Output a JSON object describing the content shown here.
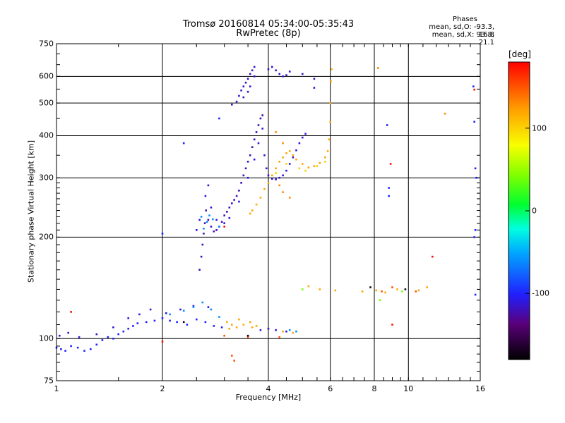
{
  "header": {
    "title_line1": "Tromsø 20160814 05:34:00-05:35:43",
    "title_line2": "RwPretec (8p)",
    "phases_title": "Phases",
    "phases_o": "mean, sd,O: -93.3, 16.8",
    "phases_x": "mean, sd,X:  93.8, 21.1"
  },
  "chart_data": {
    "type": "scatter",
    "xlabel": "Frequency [MHz]",
    "ylabel": "Stationary phase Virtual Height [km]",
    "xscale": "log",
    "yscale": "log",
    "xlim": [
      1,
      16
    ],
    "ylim": [
      75,
      750
    ],
    "x_ticks": [
      1,
      2,
      4,
      6,
      8,
      10,
      16
    ],
    "x_tick_labels": [
      "1",
      "2",
      "4",
      "6",
      "8",
      "10",
      "16"
    ],
    "y_ticks": [
      75,
      100,
      200,
      300,
      400,
      500,
      600,
      750
    ],
    "y_tick_labels": [
      "75",
      "100",
      "200",
      "300",
      "400",
      "500",
      "600",
      "750"
    ],
    "grid": true,
    "colorbar": {
      "label": "[deg]",
      "range": [
        -180,
        180
      ],
      "ticks": [
        100,
        0,
        -100
      ],
      "tick_labels": [
        "100",
        "0",
        "-100"
      ]
    },
    "traces": [
      {
        "name": "",
        "phase": -100,
        "points": [
          [
            1.0,
            94
          ],
          [
            1.03,
            93
          ],
          [
            1.06,
            92
          ],
          [
            1.1,
            95
          ],
          [
            1.15,
            94
          ],
          [
            1.2,
            92
          ],
          [
            1.25,
            93
          ],
          [
            1.3,
            96
          ],
          [
            1.35,
            99
          ],
          [
            1.4,
            101
          ],
          [
            1.45,
            100
          ],
          [
            1.5,
            103
          ],
          [
            1.55,
            105
          ],
          [
            1.6,
            107
          ],
          [
            1.65,
            109
          ],
          [
            1.7,
            111
          ],
          [
            1.8,
            112
          ],
          [
            1.9,
            113
          ],
          [
            2.0,
            115
          ],
          [
            2.1,
            113
          ],
          [
            2.2,
            112
          ],
          [
            2.35,
            110
          ],
          [
            2.5,
            114
          ],
          [
            2.65,
            112
          ],
          [
            2.8,
            109
          ],
          [
            2.95,
            108
          ]
        ]
      },
      {
        "name": "",
        "phase": -110,
        "points": [
          [
            1.02,
            102
          ],
          [
            1.08,
            104
          ],
          [
            1.16,
            101
          ],
          [
            1.3,
            103
          ],
          [
            1.45,
            108
          ],
          [
            1.6,
            115
          ],
          [
            1.72,
            118
          ],
          [
            1.85,
            122
          ],
          [
            2.05,
            119
          ],
          [
            2.25,
            122
          ],
          [
            2.45,
            125
          ],
          [
            2.7,
            124
          ],
          [
            3.8,
            106
          ],
          [
            4.0,
            107
          ],
          [
            4.2,
            106
          ],
          [
            4.5,
            105
          ]
        ]
      },
      {
        "name": "",
        "phase": -60,
        "points": [
          [
            2.1,
            118
          ],
          [
            2.3,
            121
          ],
          [
            2.45,
            124
          ],
          [
            2.6,
            128
          ],
          [
            2.75,
            122
          ],
          [
            2.9,
            116
          ],
          [
            4.6,
            106
          ],
          [
            4.8,
            105
          ]
        ]
      },
      {
        "name": "",
        "phase": 120,
        "points": [
          [
            3.05,
            112
          ],
          [
            3.15,
            110
          ],
          [
            3.25,
            108
          ],
          [
            3.4,
            110
          ],
          [
            3.55,
            112
          ],
          [
            3.7,
            109
          ],
          [
            3.1,
            107
          ],
          [
            3.3,
            114
          ],
          [
            3.6,
            108
          ],
          [
            4.4,
            105
          ],
          [
            4.7,
            104
          ],
          [
            5.2,
            143
          ],
          [
            5.6,
            140
          ],
          [
            6.2,
            139
          ],
          [
            7.4,
            138
          ],
          [
            8.1,
            139
          ],
          [
            8.6,
            137
          ],
          [
            9.3,
            140
          ],
          [
            10.7,
            139
          ],
          [
            11.3,
            142
          ]
        ]
      },
      {
        "name": "",
        "phase": 150,
        "points": [
          [
            3.15,
            89
          ],
          [
            3.2,
            86
          ],
          [
            3.0,
            102
          ],
          [
            3.5,
            101
          ],
          [
            4.3,
            101
          ],
          [
            8.4,
            138
          ],
          [
            9.0,
            142
          ],
          [
            10.5,
            138
          ]
        ]
      },
      {
        "name": "",
        "phase": -120,
        "points": [
          [
            2.55,
            160
          ],
          [
            2.58,
            175
          ],
          [
            2.6,
            190
          ],
          [
            2.62,
            205
          ],
          [
            2.64,
            220
          ],
          [
            2.66,
            240
          ],
          [
            2.7,
            225
          ],
          [
            2.75,
            215
          ],
          [
            2.8,
            208
          ],
          [
            2.85,
            210
          ],
          [
            2.9,
            215
          ],
          [
            2.95,
            222
          ],
          [
            3.0,
            232
          ],
          [
            3.05,
            238
          ],
          [
            3.1,
            245
          ],
          [
            3.15,
            252
          ],
          [
            3.2,
            258
          ],
          [
            3.25,
            265
          ],
          [
            3.3,
            275
          ],
          [
            3.35,
            290
          ],
          [
            3.4,
            305
          ],
          [
            3.45,
            320
          ],
          [
            3.5,
            335
          ],
          [
            3.55,
            350
          ],
          [
            3.6,
            370
          ],
          [
            3.65,
            390
          ],
          [
            3.7,
            410
          ],
          [
            3.75,
            430
          ],
          [
            3.8,
            450
          ],
          [
            3.85,
            460
          ]
        ]
      },
      {
        "name": "",
        "phase": -110,
        "points": [
          [
            2.5,
            210
          ],
          [
            2.55,
            225
          ],
          [
            2.65,
            265
          ],
          [
            2.7,
            285
          ],
          [
            2.75,
            245
          ],
          [
            2.85,
            225
          ],
          [
            3.0,
            220
          ],
          [
            3.1,
            228
          ],
          [
            3.3,
            255
          ],
          [
            3.5,
            300
          ],
          [
            3.65,
            340
          ],
          [
            3.75,
            380
          ],
          [
            3.85,
            420
          ],
          [
            3.9,
            350
          ],
          [
            3.95,
            320
          ],
          [
            4.0,
            305
          ],
          [
            4.1,
            298
          ],
          [
            4.2,
            297
          ],
          [
            4.3,
            300
          ],
          [
            4.4,
            305
          ],
          [
            4.5,
            315
          ],
          [
            4.6,
            330
          ],
          [
            4.7,
            345
          ],
          [
            4.8,
            362
          ],
          [
            4.9,
            380
          ],
          [
            5.0,
            395
          ],
          [
            5.1,
            405
          ]
        ]
      },
      {
        "name": "",
        "phase": -60,
        "points": [
          [
            2.58,
            230
          ],
          [
            2.62,
            212
          ],
          [
            2.68,
            222
          ],
          [
            2.72,
            232
          ],
          [
            2.78,
            226
          ],
          [
            2.9,
            215
          ]
        ]
      },
      {
        "name": "",
        "phase": -115,
        "points": [
          [
            3.15,
            495
          ],
          [
            3.25,
            505
          ],
          [
            3.3,
            525
          ],
          [
            3.35,
            545
          ],
          [
            3.4,
            560
          ],
          [
            3.45,
            575
          ],
          [
            3.5,
            590
          ],
          [
            3.55,
            610
          ],
          [
            3.6,
            625
          ],
          [
            3.65,
            640
          ],
          [
            3.4,
            520
          ],
          [
            3.5,
            540
          ],
          [
            3.55,
            560
          ],
          [
            3.65,
            600
          ],
          [
            4.0,
            630
          ],
          [
            4.1,
            640
          ],
          [
            4.2,
            625
          ],
          [
            4.3,
            610
          ],
          [
            4.4,
            600
          ],
          [
            4.5,
            605
          ],
          [
            4.6,
            620
          ],
          [
            5.0,
            610
          ],
          [
            5.4,
            590
          ],
          [
            5.4,
            555
          ]
        ]
      },
      {
        "name": "",
        "phase": 120,
        "points": [
          [
            3.55,
            235
          ],
          [
            3.6,
            240
          ],
          [
            3.7,
            250
          ],
          [
            3.8,
            262
          ],
          [
            3.9,
            278
          ],
          [
            4.0,
            290
          ],
          [
            4.1,
            305
          ],
          [
            4.2,
            320
          ],
          [
            4.3,
            335
          ],
          [
            4.4,
            345
          ],
          [
            4.5,
            355
          ],
          [
            4.6,
            360
          ],
          [
            4.7,
            350
          ],
          [
            4.8,
            340
          ],
          [
            5.0,
            330
          ],
          [
            5.2,
            322
          ],
          [
            5.4,
            325
          ],
          [
            5.6,
            332
          ],
          [
            5.8,
            345
          ],
          [
            5.9,
            360
          ],
          [
            5.95,
            390
          ],
          [
            6.0,
            440
          ],
          [
            6.0,
            500
          ],
          [
            6.02,
            580
          ],
          [
            6.05,
            630
          ]
        ]
      },
      {
        "name": "",
        "phase": 100,
        "points": [
          [
            4.2,
            310
          ],
          [
            4.5,
            330
          ],
          [
            4.9,
            320
          ],
          [
            5.1,
            315
          ],
          [
            5.5,
            325
          ],
          [
            5.8,
            335
          ]
        ]
      },
      {
        "name": "",
        "phase": 130,
        "points": [
          [
            4.3,
            285
          ],
          [
            4.4,
            272
          ],
          [
            4.6,
            262
          ],
          [
            4.2,
            410
          ],
          [
            4.4,
            380
          ],
          [
            8.2,
            635
          ],
          [
            12.7,
            465
          ]
        ]
      },
      {
        "name": "",
        "phase": -100,
        "points": [
          [
            2.0,
            205
          ],
          [
            2.3,
            380
          ],
          [
            2.9,
            450
          ],
          [
            8.7,
            430
          ],
          [
            8.8,
            280
          ],
          [
            8.8,
            265
          ],
          [
            15.3,
            560
          ],
          [
            15.4,
            440
          ],
          [
            15.5,
            320
          ],
          [
            15.6,
            300
          ],
          [
            15.5,
            210
          ],
          [
            15.4,
            200
          ],
          [
            15.5,
            135
          ]
        ]
      },
      {
        "name": "",
        "phase": 175,
        "points": [
          [
            1.1,
            120
          ],
          [
            2.0,
            98
          ],
          [
            8.9,
            330
          ],
          [
            9.0,
            110
          ],
          [
            15.4,
            548
          ],
          [
            11.7,
            175
          ],
          [
            3.0,
            215
          ]
        ]
      },
      {
        "name": "",
        "phase": -170,
        "points": [
          [
            7.8,
            142
          ],
          [
            9.8,
            140
          ],
          [
            3.5,
            102
          ],
          [
            2.3,
            112
          ]
        ]
      },
      {
        "name": "",
        "phase": 40,
        "points": [
          [
            8.3,
            130
          ],
          [
            9.6,
            138
          ],
          [
            5.0,
            140
          ]
        ]
      }
    ]
  }
}
